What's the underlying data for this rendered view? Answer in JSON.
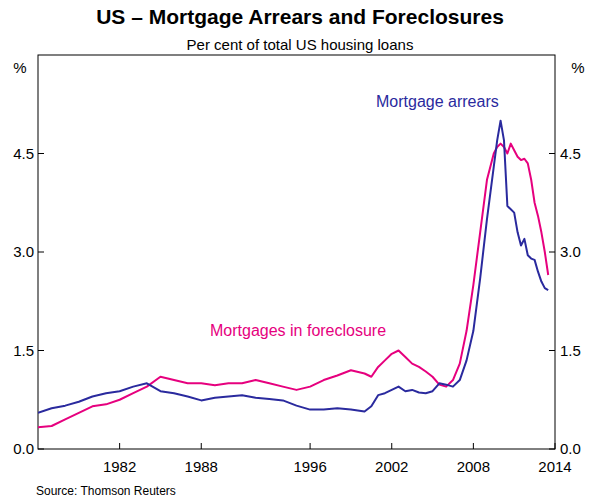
{
  "chart_data": {
    "type": "line",
    "title": "US – Mortgage Arrears and Foreclosures",
    "subtitle": "Per cent of total US housing loans",
    "source": "Source: Thomson Reuters",
    "ylabel": "%",
    "y2label": "%",
    "x": [
      1976,
      1977,
      1978,
      1979,
      1980,
      1981,
      1982,
      1983,
      1984,
      1985,
      1986,
      1987,
      1988,
      1989,
      1990,
      1991,
      1992,
      1993,
      1994,
      1995,
      1996,
      1997,
      1998,
      1999,
      2000,
      2000.5,
      2001,
      2001.5,
      2002,
      2002.5,
      2003,
      2003.5,
      2004,
      2004.5,
      2005,
      2005.5,
      2006,
      2006.5,
      2007,
      2007.5,
      2008,
      2008.5,
      2009,
      2009.5,
      2009.75,
      2010,
      2010.25,
      2010.5,
      2010.75,
      2011,
      2011.25,
      2011.5,
      2011.75,
      2012,
      2012.25,
      2012.5,
      2012.75,
      2013,
      2013.25,
      2013.5
    ],
    "series": [
      {
        "name": "Mortgage arrears",
        "color": "#2a2a9e",
        "values": [
          0.55,
          0.62,
          0.66,
          0.72,
          0.8,
          0.85,
          0.88,
          0.95,
          1.0,
          0.88,
          0.85,
          0.8,
          0.74,
          0.78,
          0.8,
          0.82,
          0.78,
          0.76,
          0.74,
          0.66,
          0.6,
          0.6,
          0.62,
          0.6,
          0.57,
          0.65,
          0.82,
          0.85,
          0.9,
          0.95,
          0.88,
          0.9,
          0.86,
          0.85,
          0.88,
          1.0,
          0.98,
          0.95,
          1.05,
          1.35,
          1.8,
          2.6,
          3.5,
          4.3,
          4.7,
          5.0,
          4.7,
          3.7,
          3.65,
          3.6,
          3.3,
          3.1,
          3.2,
          2.95,
          2.9,
          2.88,
          2.7,
          2.55,
          2.45,
          2.42
        ]
      },
      {
        "name": "Mortgages in foreclosure",
        "color": "#e6007e",
        "values": [
          0.33,
          0.35,
          0.45,
          0.55,
          0.65,
          0.68,
          0.75,
          0.85,
          0.95,
          1.1,
          1.05,
          1.0,
          1.0,
          0.97,
          1.0,
          1.0,
          1.05,
          1.0,
          0.95,
          0.9,
          0.95,
          1.05,
          1.12,
          1.2,
          1.15,
          1.1,
          1.25,
          1.35,
          1.45,
          1.5,
          1.4,
          1.3,
          1.25,
          1.18,
          1.1,
          0.98,
          0.95,
          1.05,
          1.3,
          1.8,
          2.5,
          3.3,
          4.1,
          4.5,
          4.6,
          4.65,
          4.6,
          4.5,
          4.65,
          4.55,
          4.45,
          4.4,
          4.42,
          4.35,
          4.1,
          3.75,
          3.55,
          3.3,
          3.0,
          2.65
        ]
      }
    ],
    "xlim": [
      1976,
      2014
    ],
    "xticks": [
      1982,
      1988,
      1996,
      2002,
      2008,
      2014
    ],
    "ylim": [
      0,
      6
    ],
    "yticks": [
      {
        "value": 0,
        "label": "0.0"
      },
      1.5,
      {
        "value": 3,
        "label": "3.0"
      },
      4.5
    ],
    "y2lim": [
      0,
      6
    ],
    "y2ticks": [
      {
        "value": 0,
        "label": "0.0"
      },
      1.5,
      {
        "value": 3,
        "label": "3.0"
      },
      4.5
    ],
    "grid": false
  }
}
